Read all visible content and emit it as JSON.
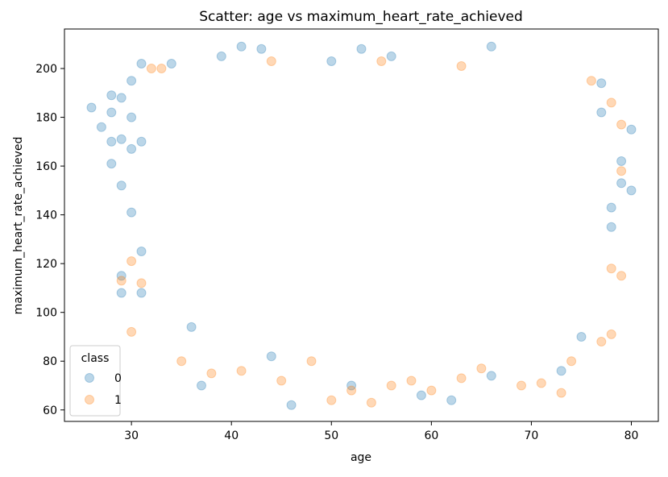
{
  "chart_data": {
    "type": "scatter",
    "title": "Scatter: age vs maximum_heart_rate_achieved",
    "xlabel": "age",
    "ylabel": "maximum_heart_rate_achieved",
    "xlim": [
      23.3,
      82.7
    ],
    "ylim": [
      55.3,
      216.2
    ],
    "x_ticks": [
      30,
      40,
      50,
      60,
      70,
      80
    ],
    "y_ticks": [
      60,
      80,
      100,
      120,
      140,
      160,
      180,
      200
    ],
    "grid": false,
    "legend": {
      "title": "class",
      "placement": "bottom-left",
      "entries": [
        "0",
        "1"
      ]
    },
    "series": [
      {
        "name": "0",
        "color": "#1f77b4",
        "alpha": 0.3,
        "points": [
          [
            26,
            184
          ],
          [
            27,
            176
          ],
          [
            28,
            189
          ],
          [
            28,
            182
          ],
          [
            28,
            170
          ],
          [
            28,
            161
          ],
          [
            29,
            188
          ],
          [
            29,
            171
          ],
          [
            29,
            152
          ],
          [
            29,
            108
          ],
          [
            29,
            115
          ],
          [
            30,
            195
          ],
          [
            30,
            180
          ],
          [
            30,
            167
          ],
          [
            30,
            141
          ],
          [
            31,
            202
          ],
          [
            31,
            170
          ],
          [
            31,
            108
          ],
          [
            31,
            125
          ],
          [
            34,
            202
          ],
          [
            36,
            94
          ],
          [
            37,
            70
          ],
          [
            39,
            205
          ],
          [
            41,
            209
          ],
          [
            43,
            208
          ],
          [
            44,
            82
          ],
          [
            46,
            62
          ],
          [
            50,
            203
          ],
          [
            52,
            70
          ],
          [
            53,
            208
          ],
          [
            56,
            205
          ],
          [
            59,
            66
          ],
          [
            62,
            64
          ],
          [
            66,
            209
          ],
          [
            66,
            74
          ],
          [
            73,
            76
          ],
          [
            75,
            90
          ],
          [
            77,
            194
          ],
          [
            79,
            162
          ],
          [
            79,
            153
          ],
          [
            80,
            175
          ],
          [
            80,
            150
          ],
          [
            78,
            135
          ],
          [
            78,
            143
          ],
          [
            77,
            182
          ]
        ]
      },
      {
        "name": "1",
        "color": "#ff7f0e",
        "alpha": 0.3,
        "points": [
          [
            29,
            113
          ],
          [
            30,
            121
          ],
          [
            30,
            92
          ],
          [
            31,
            112
          ],
          [
            32,
            200
          ],
          [
            33,
            200
          ],
          [
            35,
            80
          ],
          [
            38,
            75
          ],
          [
            41,
            76
          ],
          [
            45,
            72
          ],
          [
            48,
            80
          ],
          [
            50,
            64
          ],
          [
            52,
            68
          ],
          [
            54,
            63
          ],
          [
            56,
            70
          ],
          [
            58,
            72
          ],
          [
            60,
            68
          ],
          [
            63,
            73
          ],
          [
            65,
            77
          ],
          [
            69,
            70
          ],
          [
            71,
            71
          ],
          [
            73,
            67
          ],
          [
            74,
            80
          ],
          [
            76,
            195
          ],
          [
            77,
            88
          ],
          [
            78,
            91
          ],
          [
            78,
            186
          ],
          [
            79,
            177
          ],
          [
            79,
            115
          ],
          [
            79,
            158
          ],
          [
            78,
            118
          ],
          [
            63,
            201
          ],
          [
            44,
            203
          ],
          [
            55,
            203
          ]
        ]
      }
    ]
  }
}
